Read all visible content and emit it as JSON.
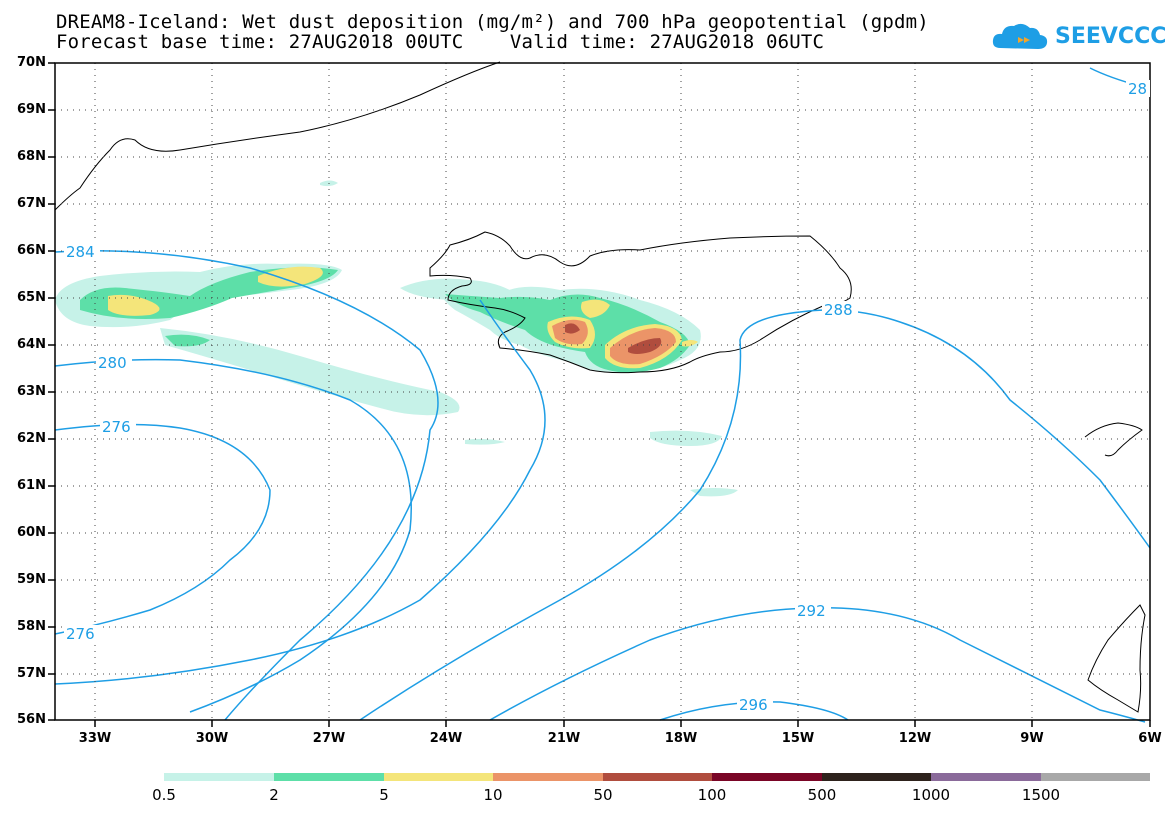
{
  "title_line1": "DREAM8-Iceland: Wet dust deposition (mg/m²) and 700 hPa geopotential (gpdm)",
  "title_line2": "Forecast base time: 27AUG2018 00UTC    Valid time: 27AUG2018 06UTC",
  "logo_text": "SEEVCCC",
  "lat_labels": [
    "70N",
    "69N",
    "68N",
    "67N",
    "66N",
    "65N",
    "64N",
    "63N",
    "62N",
    "61N",
    "60N",
    "59N",
    "58N",
    "57N",
    "56N"
  ],
  "lon_labels": [
    "33W",
    "30W",
    "27W",
    "24W",
    "21W",
    "18W",
    "15W",
    "12W",
    "9W",
    "6W"
  ],
  "contour_labels": [
    "284",
    "280",
    "276",
    "276",
    "288",
    "28",
    "292",
    "296"
  ],
  "colorbar": {
    "colors": [
      "#c6f2e8",
      "#5ddfa8",
      "#f4e57a",
      "#eb9468",
      "#b04d3e",
      "#7a0526",
      "#2e221c",
      "#8a6a9a",
      "#a8a8a8"
    ],
    "labels": [
      "0.5",
      "2",
      "5",
      "10",
      "50",
      "100",
      "500",
      "1000",
      "1500"
    ]
  }
}
